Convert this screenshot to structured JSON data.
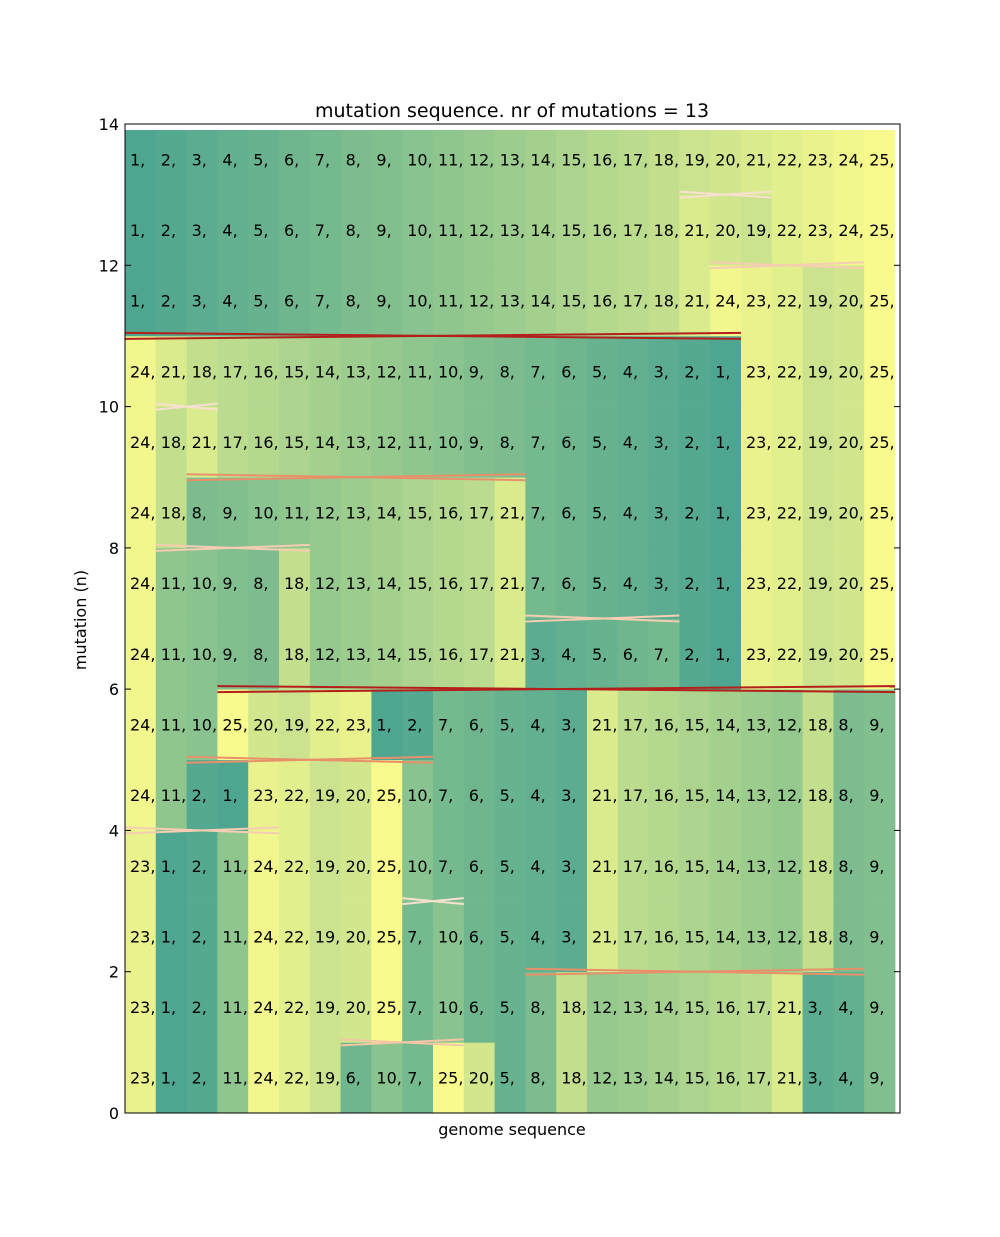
{
  "chart_data": {
    "type": "heatmap",
    "title": "mutation sequence. nr of mutations = 13",
    "xlabel": "genome sequence",
    "ylabel": "mutation (n)",
    "ylim": [
      0,
      14
    ],
    "yticks": [
      0,
      2,
      4,
      6,
      8,
      10,
      12,
      14
    ],
    "colormap": {
      "low": "#4ea690",
      "mid": "#9ccc8e",
      "high": "#f9fa8d"
    },
    "rows": [
      [
        23,
        1,
        2,
        11,
        24,
        22,
        19,
        6,
        10,
        7,
        25,
        20,
        5,
        8,
        18,
        12,
        13,
        14,
        15,
        16,
        17,
        21,
        3,
        4,
        9
      ],
      [
        23,
        1,
        2,
        11,
        24,
        22,
        19,
        20,
        25,
        7,
        10,
        6,
        5,
        8,
        18,
        12,
        13,
        14,
        15,
        16,
        17,
        21,
        3,
        4,
        9
      ],
      [
        23,
        1,
        2,
        11,
        24,
        22,
        19,
        20,
        25,
        7,
        10,
        6,
        5,
        4,
        3,
        21,
        17,
        16,
        15,
        14,
        13,
        12,
        18,
        8,
        9
      ],
      [
        23,
        1,
        2,
        11,
        24,
        22,
        19,
        20,
        25,
        10,
        7,
        6,
        5,
        4,
        3,
        21,
        17,
        16,
        15,
        14,
        13,
        12,
        18,
        8,
        9
      ],
      [
        24,
        11,
        2,
        1,
        23,
        22,
        19,
        20,
        25,
        10,
        7,
        6,
        5,
        4,
        3,
        21,
        17,
        16,
        15,
        14,
        13,
        12,
        18,
        8,
        9
      ],
      [
        24,
        11,
        10,
        25,
        20,
        19,
        22,
        23,
        1,
        2,
        7,
        6,
        5,
        4,
        3,
        21,
        17,
        16,
        15,
        14,
        13,
        12,
        18,
        8,
        9
      ],
      [
        24,
        11,
        10,
        9,
        8,
        18,
        12,
        13,
        14,
        15,
        16,
        17,
        21,
        3,
        4,
        5,
        6,
        7,
        2,
        1,
        23,
        22,
        19,
        20,
        25
      ],
      [
        24,
        11,
        10,
        9,
        8,
        18,
        12,
        13,
        14,
        15,
        16,
        17,
        21,
        7,
        6,
        5,
        4,
        3,
        2,
        1,
        23,
        22,
        19,
        20,
        25
      ],
      [
        24,
        18,
        8,
        9,
        10,
        11,
        12,
        13,
        14,
        15,
        16,
        17,
        21,
        7,
        6,
        5,
        4,
        3,
        2,
        1,
        23,
        22,
        19,
        20,
        25
      ],
      [
        24,
        18,
        21,
        17,
        16,
        15,
        14,
        13,
        12,
        11,
        10,
        9,
        8,
        7,
        6,
        5,
        4,
        3,
        2,
        1,
        23,
        22,
        19,
        20,
        25
      ],
      [
        24,
        21,
        18,
        17,
        16,
        15,
        14,
        13,
        12,
        11,
        10,
        9,
        8,
        7,
        6,
        5,
        4,
        3,
        2,
        1,
        23,
        22,
        19,
        20,
        25
      ],
      [
        1,
        2,
        3,
        4,
        5,
        6,
        7,
        8,
        9,
        10,
        11,
        12,
        13,
        14,
        15,
        16,
        17,
        18,
        21,
        24,
        23,
        22,
        19,
        20,
        25
      ],
      [
        1,
        2,
        3,
        4,
        5,
        6,
        7,
        8,
        9,
        10,
        11,
        12,
        13,
        14,
        15,
        16,
        17,
        18,
        21,
        20,
        19,
        22,
        23,
        24,
        25
      ],
      [
        1,
        2,
        3,
        4,
        5,
        6,
        7,
        8,
        9,
        10,
        11,
        12,
        13,
        14,
        15,
        16,
        17,
        18,
        19,
        20,
        21,
        22,
        23,
        24,
        25
      ]
    ],
    "mutations": [
      {
        "between_rows": [
          0,
          1
        ],
        "from": 7,
        "to": 11,
        "kind": "inversion",
        "color": "#f4c6a6"
      },
      {
        "between_rows": [
          1,
          2
        ],
        "from": 13,
        "to": 24,
        "kind": "inversion",
        "color": "#e8906a"
      },
      {
        "between_rows": [
          2,
          3
        ],
        "from": 9,
        "to": 11,
        "kind": "inversion",
        "color": "#f7e0cf"
      },
      {
        "between_rows": [
          3,
          4
        ],
        "from": 0,
        "to": 5,
        "kind": "inversion",
        "color": "#f4cdb2"
      },
      {
        "between_rows": [
          4,
          5
        ],
        "from": 2,
        "to": 10,
        "kind": "inversion",
        "color": "#e8906a"
      },
      {
        "between_rows": [
          5,
          6
        ],
        "from": 3,
        "to": 25,
        "kind": "inversion",
        "color": "#b3201c"
      },
      {
        "between_rows": [
          6,
          7
        ],
        "from": 13,
        "to": 18,
        "kind": "inversion",
        "color": "#f4cdb2"
      },
      {
        "between_rows": [
          7,
          8
        ],
        "from": 1,
        "to": 6,
        "kind": "inversion",
        "color": "#f4cdb2"
      },
      {
        "between_rows": [
          8,
          9
        ],
        "from": 2,
        "to": 13,
        "kind": "inversion",
        "color": "#e8906a"
      },
      {
        "between_rows": [
          9,
          10
        ],
        "from": 1,
        "to": 3,
        "kind": "inversion",
        "color": "#f7e0cf"
      },
      {
        "between_rows": [
          10,
          11
        ],
        "from": 0,
        "to": 20,
        "kind": "inversion",
        "color": "#b3201c"
      },
      {
        "between_rows": [
          11,
          12
        ],
        "from": 19,
        "to": 24,
        "kind": "inversion",
        "color": "#f4cdb2"
      },
      {
        "between_rows": [
          12,
          13
        ],
        "from": 18,
        "to": 21,
        "kind": "inversion",
        "color": "#f7e0cf"
      }
    ]
  }
}
